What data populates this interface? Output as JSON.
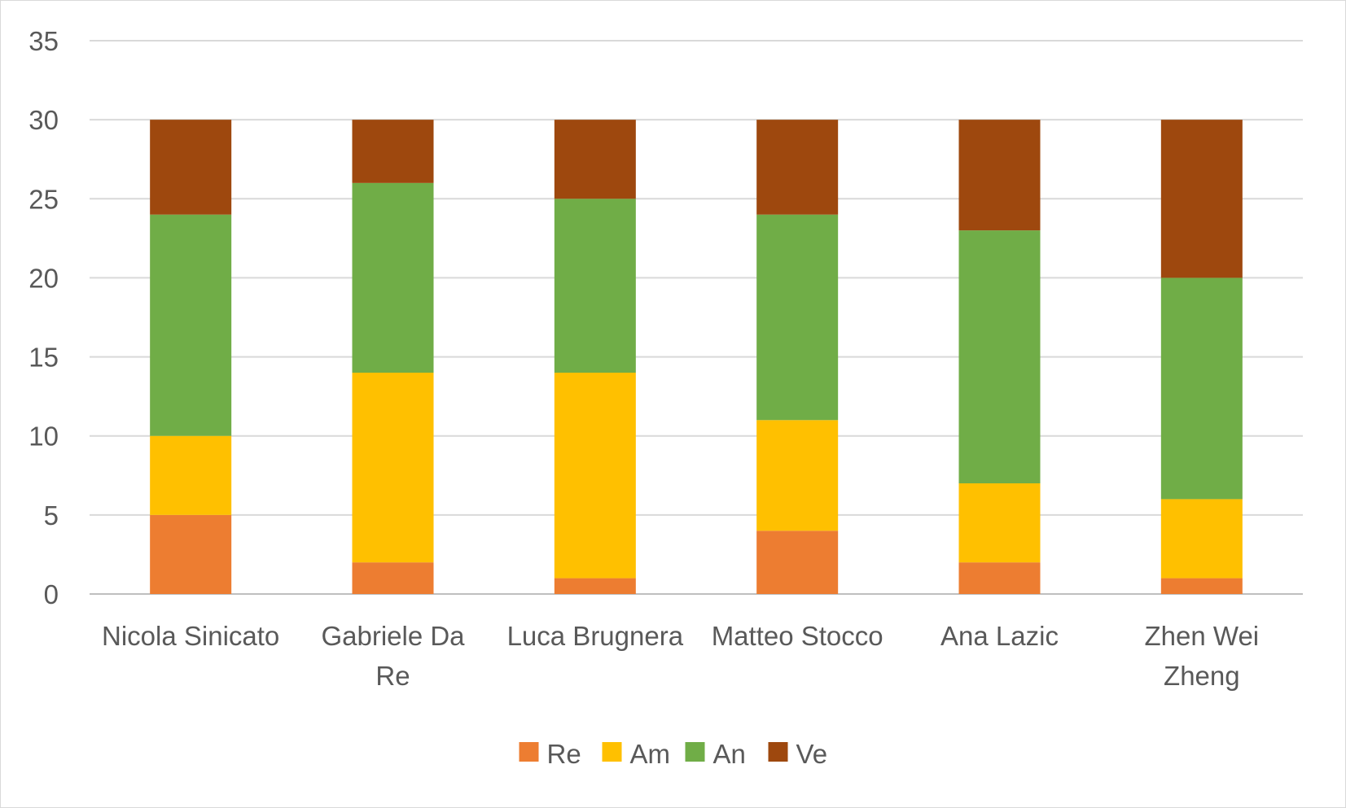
{
  "chart_data": {
    "type": "bar",
    "stacked": true,
    "title": "",
    "xlabel": "",
    "ylabel": "",
    "ylim": [
      0,
      35
    ],
    "yticks": [
      0,
      5,
      10,
      15,
      20,
      25,
      30,
      35
    ],
    "grid": true,
    "legend_position": "bottom",
    "categories": [
      [
        "Nicola Sinicato"
      ],
      [
        "Gabriele Da",
        "Re"
      ],
      [
        "Luca Brugnera"
      ],
      [
        "Matteo Stocco"
      ],
      [
        "Ana Lazic"
      ],
      [
        "Zhen Wei",
        "Zheng"
      ]
    ],
    "series": [
      {
        "name": "Re",
        "color": "#ED7D31",
        "values": [
          5,
          2,
          1,
          4,
          2,
          1
        ]
      },
      {
        "name": "Am",
        "color": "#FFC000",
        "values": [
          5,
          12,
          13,
          7,
          5,
          5
        ]
      },
      {
        "name": "An",
        "color": "#70AD47",
        "values": [
          14,
          12,
          11,
          13,
          16,
          14
        ]
      },
      {
        "name": "Ve",
        "color": "#9E480E",
        "values": [
          6,
          4,
          5,
          6,
          7,
          10
        ]
      }
    ]
  }
}
